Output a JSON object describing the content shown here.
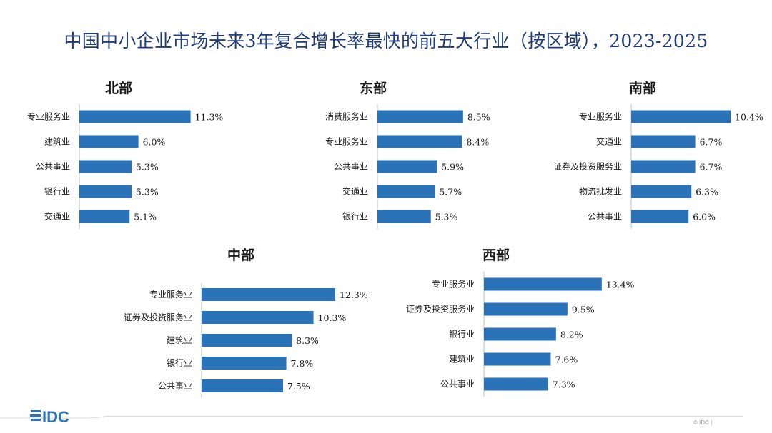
{
  "title": "中国中小企业市场未来3年复合增长率最快的前五大行业（按区域），2023-2025",
  "colors": {
    "bar": "#2a73b8",
    "title": "#1f3c78"
  },
  "footer": {
    "logo_text": "IDC",
    "copyright": "© IDC |"
  },
  "chart_data": [
    {
      "type": "bar",
      "orientation": "horizontal",
      "title": "北部",
      "unit": "%",
      "xlim": [
        0,
        14
      ],
      "categories": [
        "专业服务业",
        "建筑业",
        "公共事业",
        "银行业",
        "交通业"
      ],
      "values": [
        11.3,
        6.0,
        5.3,
        5.3,
        5.1
      ],
      "value_labels": [
        "11.3%",
        "6.0%",
        "5.3%",
        "5.3%",
        "5.1%"
      ]
    },
    {
      "type": "bar",
      "orientation": "horizontal",
      "title": "东部",
      "unit": "%",
      "xlim": [
        0,
        14
      ],
      "categories": [
        "消费服务业",
        "专业服务业",
        "公共事业",
        "交通业",
        "银行业"
      ],
      "values": [
        8.5,
        8.4,
        5.9,
        5.7,
        5.3
      ],
      "value_labels": [
        "8.5%",
        "8.4%",
        "5.9%",
        "5.7%",
        "5.3%"
      ]
    },
    {
      "type": "bar",
      "orientation": "horizontal",
      "title": "南部",
      "unit": "%",
      "xlim": [
        0,
        14
      ],
      "categories": [
        "专业服务业",
        "交通业",
        "证券及投资服务业",
        "物流批发业",
        "公共事业"
      ],
      "values": [
        10.4,
        6.7,
        6.7,
        6.3,
        6.0
      ],
      "value_labels": [
        "10.4%",
        "6.7%",
        "6.7%",
        "6.3%",
        "6.0%"
      ]
    },
    {
      "type": "bar",
      "orientation": "horizontal",
      "title": "中部",
      "unit": "%",
      "xlim": [
        0,
        14
      ],
      "categories": [
        "专业服务业",
        "证券及投资服务业",
        "建筑业",
        "银行业",
        "公共事业"
      ],
      "values": [
        12.3,
        10.3,
        8.3,
        7.8,
        7.5
      ],
      "value_labels": [
        "12.3%",
        "10.3%",
        "8.3%",
        "7.8%",
        "7.5%"
      ]
    },
    {
      "type": "bar",
      "orientation": "horizontal",
      "title": "西部",
      "unit": "%",
      "xlim": [
        0,
        14
      ],
      "categories": [
        "专业服务业",
        "证券及投资服务业",
        "银行业",
        "建筑业",
        "公共事业"
      ],
      "values": [
        13.4,
        9.5,
        8.2,
        7.6,
        7.3
      ],
      "value_labels": [
        "13.4%",
        "9.5%",
        "8.2%",
        "7.6%",
        "7.3%"
      ]
    }
  ]
}
